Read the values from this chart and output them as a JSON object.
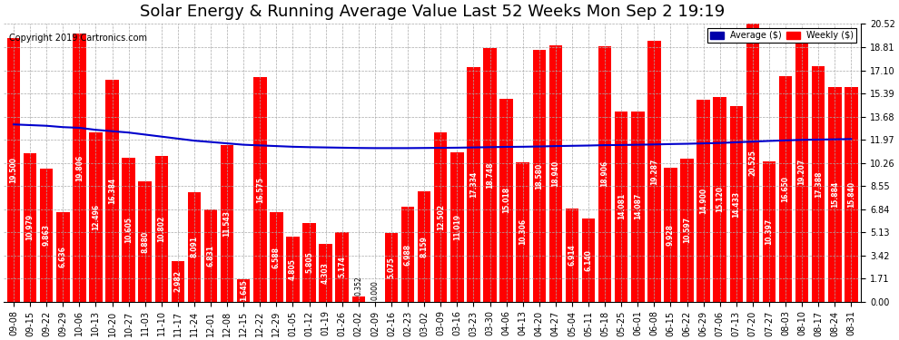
{
  "title": "Solar Energy & Running Average Value Last 52 Weeks Mon Sep 2 19:19",
  "copyright": "Copyright 2019 Cartronics.com",
  "categories": [
    "09-08",
    "09-15",
    "09-22",
    "09-29",
    "10-06",
    "10-13",
    "10-20",
    "10-27",
    "11-03",
    "11-10",
    "11-17",
    "11-24",
    "12-01",
    "12-08",
    "12-15",
    "12-22",
    "12-29",
    "01-05",
    "01-12",
    "01-19",
    "01-26",
    "02-02",
    "02-09",
    "02-16",
    "02-23",
    "03-02",
    "03-09",
    "03-16",
    "03-23",
    "03-30",
    "04-06",
    "04-13",
    "04-20",
    "04-27",
    "05-04",
    "05-11",
    "05-18",
    "05-25",
    "06-01",
    "06-08",
    "06-15",
    "06-22",
    "06-29",
    "07-06",
    "07-13",
    "07-20",
    "07-27",
    "08-03",
    "08-10",
    "08-17",
    "08-24",
    "08-31"
  ],
  "weekly_values": [
    19.5,
    10.979,
    9.863,
    6.636,
    19.806,
    12.496,
    16.384,
    10.605,
    8.88,
    10.802,
    2.982,
    8.091,
    6.831,
    11.543,
    1.645,
    16.575,
    6.588,
    4.805,
    5.805,
    4.303,
    5.174,
    0.352,
    0.0,
    5.075,
    6.988,
    8.159,
    12.502,
    11.019,
    17.334,
    18.748,
    15.018,
    10.306,
    18.58,
    18.94,
    6.914,
    6.14,
    18.906,
    14.081,
    14.087,
    19.287,
    9.928,
    10.597,
    14.9,
    15.12,
    14.433,
    20.525,
    10.397,
    16.65,
    19.207,
    17.388,
    15.884,
    15.84
  ],
  "average_values": [
    13.1,
    13.05,
    13.0,
    12.9,
    12.85,
    12.7,
    12.6,
    12.5,
    12.35,
    12.2,
    12.05,
    11.9,
    11.8,
    11.7,
    11.6,
    11.55,
    11.5,
    11.45,
    11.42,
    11.4,
    11.38,
    11.36,
    11.35,
    11.35,
    11.35,
    11.36,
    11.37,
    11.38,
    11.4,
    11.42,
    11.44,
    11.45,
    11.47,
    11.5,
    11.52,
    11.54,
    11.57,
    11.58,
    11.6,
    11.62,
    11.65,
    11.67,
    11.7,
    11.73,
    11.78,
    11.83,
    11.88,
    11.92,
    11.96,
    11.98,
    12.0,
    12.02
  ],
  "bar_color": "#ff0000",
  "line_color": "#0000cc",
  "background_color": "#ffffff",
  "plot_background_color": "#ffffff",
  "grid_color": "#aaaaaa",
  "yticks": [
    0.0,
    1.71,
    3.42,
    5.13,
    6.84,
    8.55,
    10.26,
    11.97,
    13.68,
    15.39,
    17.1,
    18.81,
    20.52
  ],
  "ylim": [
    0,
    20.52
  ],
  "title_fontsize": 13,
  "tick_fontsize": 7,
  "bar_label_fontsize": 5.5,
  "avg_label": "Average ($)",
  "weekly_label": "Weekly ($)",
  "legend_avg_color": "#0000aa",
  "legend_weekly_color": "#ff0000"
}
